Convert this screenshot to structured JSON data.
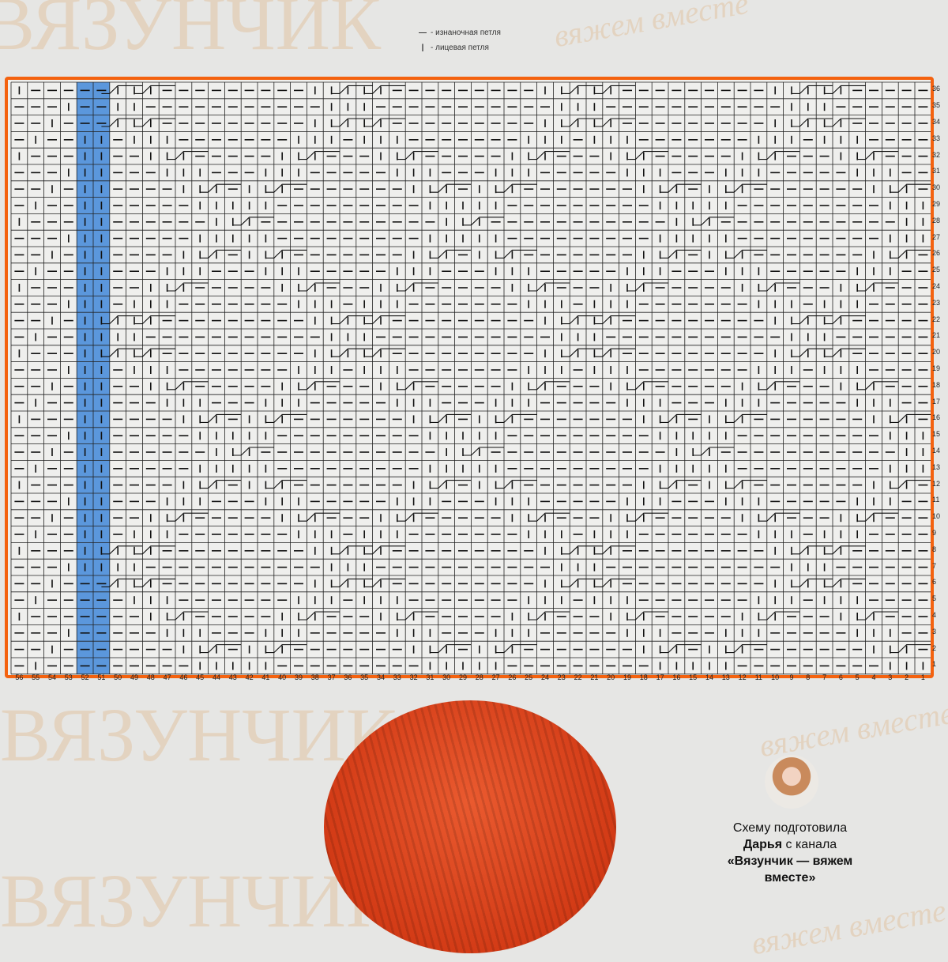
{
  "watermark": {
    "brand": "ВЯЗУНЧИК",
    "slogan": "вяжем вместе"
  },
  "legend": [
    {
      "symbol": "—",
      "label": "- изнаночная петля"
    },
    {
      "symbol": "|",
      "label": "- лицевая петля"
    }
  ],
  "chart": {
    "columns": 56,
    "rows": 36,
    "highlighted_columns": [
      52,
      51
    ],
    "highlight_color": "#5b97dc",
    "border_color": "#f4620f"
  },
  "credit": {
    "line1": "Схему подготовила",
    "name": "Дарья",
    "line2": " с канала",
    "channel": "«Вязунчик — вяжем вместе»"
  },
  "colors": {
    "background": "#e6e6e4",
    "yarn": "#d8401a"
  }
}
